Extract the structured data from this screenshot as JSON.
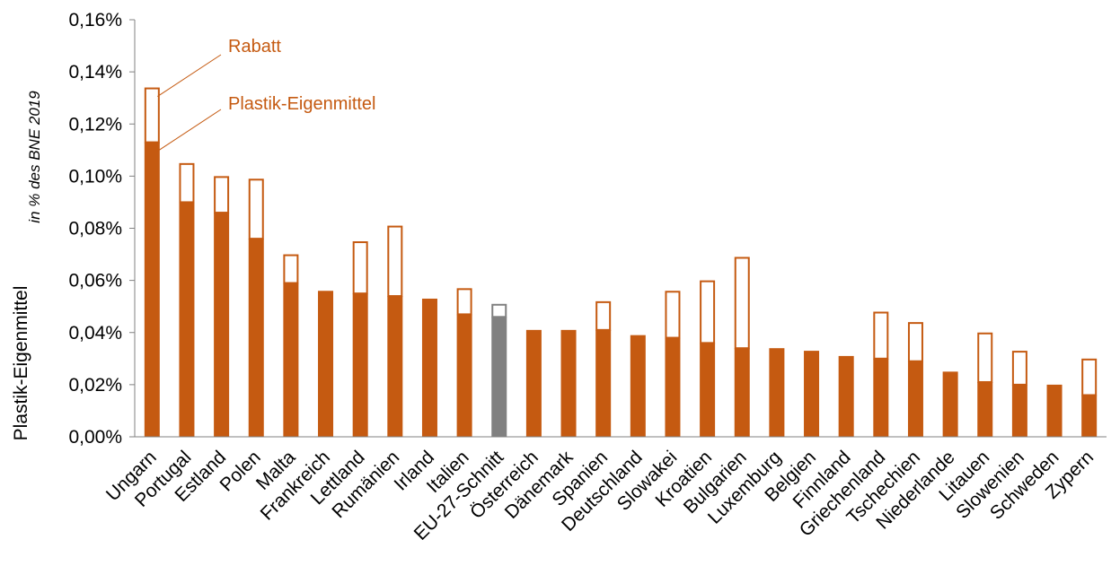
{
  "chart_data": {
    "type": "bar",
    "stacked": true,
    "ylabel": "Plastik-Eigenmittel",
    "ylabel_note": "in % des BNE 2019",
    "ylim": [
      0,
      0.16
    ],
    "yticks": [
      "0,00%",
      "0,02%",
      "0,04%",
      "0,06%",
      "0,08%",
      "0,10%",
      "0,12%",
      "0,14%",
      "0,16%"
    ],
    "grid": false,
    "categories": [
      "Ungarn",
      "Portugal",
      "Estland",
      "Polen",
      "Malta",
      "Frankreich",
      "Lettland",
      "Rumänien",
      "Irland",
      "Italien",
      "EU-27-Schnitt",
      "Österreich",
      "Dänemark",
      "Spanien",
      "Deutschland",
      "Slowakei",
      "Kroatien",
      "Bulgarien",
      "Luxemburg",
      "Belgien",
      "Finnland",
      "Griechenland",
      "Tschechien",
      "Niederlande",
      "Litauen",
      "Slowenien",
      "Schweden",
      "Zypern"
    ],
    "series": [
      {
        "name": "Plastik-Eigenmittel",
        "values": [
          0.113,
          0.09,
          0.086,
          0.076,
          0.059,
          0.056,
          0.055,
          0.054,
          0.053,
          0.047,
          0.046,
          0.041,
          0.041,
          0.041,
          0.039,
          0.038,
          0.036,
          0.034,
          0.034,
          0.033,
          0.031,
          0.03,
          0.029,
          0.025,
          0.021,
          0.02,
          0.02,
          0.016
        ]
      },
      {
        "name": "Rabatt",
        "values": [
          0.021,
          0.015,
          0.014,
          0.023,
          0.011,
          0,
          0.02,
          0.027,
          0,
          0.01,
          0.005,
          0,
          0,
          0.011,
          0,
          0.018,
          0.024,
          0.035,
          0,
          0,
          0,
          0.018,
          0.015,
          0,
          0.019,
          0.013,
          0,
          0.014
        ]
      }
    ],
    "highlight_category": "EU-27-Schnitt",
    "colors": {
      "main": "#C55A11",
      "highlight": "#808080",
      "rebate_fill": "#FFFFFF",
      "axis": "#808080",
      "annotation": "#C55A11"
    },
    "annotations": [
      {
        "text": "Rabatt",
        "points_to": {
          "category": "Ungarn",
          "series": "Rabatt"
        }
      },
      {
        "text": "Plastik-Eigenmittel",
        "points_to": {
          "category": "Ungarn",
          "series": "Plastik-Eigenmittel"
        }
      }
    ]
  }
}
